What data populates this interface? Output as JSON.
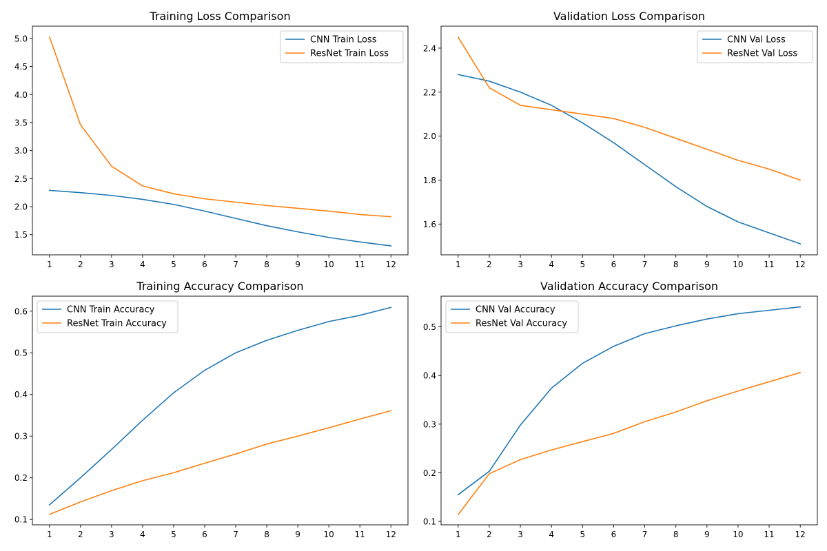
{
  "chart_data": [
    {
      "type": "line",
      "title": "Training Loss Comparison",
      "xlabel": "",
      "ylabel": "",
      "x": [
        1,
        2,
        3,
        4,
        5,
        6,
        7,
        8,
        9,
        10,
        11,
        12
      ],
      "xticks": [
        1,
        2,
        3,
        4,
        5,
        6,
        7,
        8,
        9,
        10,
        11,
        12
      ],
      "xlim": [
        0.45,
        12.55
      ],
      "ylim": [
        1.14,
        5.22
      ],
      "yticks": [
        1.5,
        2.0,
        2.5,
        3.0,
        3.5,
        4.0,
        4.5,
        5.0
      ],
      "ytick_labels": [
        "1.5",
        "2.0",
        "2.5",
        "3.0",
        "3.5",
        "4.0",
        "4.5",
        "5.0"
      ],
      "grid": false,
      "legend_position": "upper right",
      "series": [
        {
          "name": "CNN Train Loss",
          "color": "#1f77b4",
          "values": [
            2.29,
            2.25,
            2.2,
            2.13,
            2.04,
            1.92,
            1.79,
            1.66,
            1.55,
            1.45,
            1.37,
            1.3
          ]
        },
        {
          "name": "ResNet Train Loss",
          "color": "#ff7f0e",
          "values": [
            5.03,
            3.46,
            2.72,
            2.37,
            2.23,
            2.14,
            2.08,
            2.02,
            1.97,
            1.92,
            1.86,
            1.82
          ]
        }
      ]
    },
    {
      "type": "line",
      "title": "Validation Loss Comparison",
      "xlabel": "",
      "ylabel": "",
      "x": [
        1,
        2,
        3,
        4,
        5,
        6,
        7,
        8,
        9,
        10,
        11,
        12
      ],
      "xticks": [
        1,
        2,
        3,
        4,
        5,
        6,
        7,
        8,
        9,
        10,
        11,
        12
      ],
      "xlim": [
        0.45,
        12.55
      ],
      "ylim": [
        1.46,
        2.5
      ],
      "yticks": [
        1.6,
        1.8,
        2.0,
        2.2,
        2.4
      ],
      "ytick_labels": [
        "1.6",
        "1.8",
        "2.0",
        "2.2",
        "2.4"
      ],
      "grid": false,
      "legend_position": "upper right",
      "series": [
        {
          "name": "CNN Val Loss",
          "color": "#1f77b4",
          "values": [
            2.28,
            2.25,
            2.2,
            2.14,
            2.06,
            1.97,
            1.87,
            1.77,
            1.68,
            1.61,
            1.56,
            1.51
          ]
        },
        {
          "name": "ResNet Val Loss",
          "color": "#ff7f0e",
          "values": [
            2.45,
            2.22,
            2.14,
            2.12,
            2.1,
            2.08,
            2.04,
            1.99,
            1.94,
            1.89,
            1.85,
            1.8
          ]
        }
      ]
    },
    {
      "type": "line",
      "title": "Training Accuracy Comparison",
      "xlabel": "",
      "ylabel": "",
      "x": [
        1,
        2,
        3,
        4,
        5,
        6,
        7,
        8,
        9,
        10,
        11,
        12
      ],
      "xticks": [
        1,
        2,
        3,
        4,
        5,
        6,
        7,
        8,
        9,
        10,
        11,
        12
      ],
      "xlim": [
        0.45,
        12.55
      ],
      "ylim": [
        0.087,
        0.636
      ],
      "yticks": [
        0.1,
        0.2,
        0.3,
        0.4,
        0.5,
        0.6
      ],
      "ytick_labels": [
        "0.1",
        "0.2",
        "0.3",
        "0.4",
        "0.5",
        "0.6"
      ],
      "grid": false,
      "legend_position": "upper left",
      "series": [
        {
          "name": "CNN Train Accuracy",
          "color": "#1f77b4",
          "values": [
            0.135,
            0.2,
            0.268,
            0.338,
            0.404,
            0.458,
            0.5,
            0.53,
            0.554,
            0.575,
            0.59,
            0.609
          ]
        },
        {
          "name": "ResNet Train Accuracy",
          "color": "#ff7f0e",
          "values": [
            0.112,
            0.142,
            0.169,
            0.193,
            0.212,
            0.235,
            0.257,
            0.281,
            0.3,
            0.32,
            0.341,
            0.361
          ]
        }
      ]
    },
    {
      "type": "line",
      "title": "Validation Accuracy Comparison",
      "xlabel": "",
      "ylabel": "",
      "x": [
        1,
        2,
        3,
        4,
        5,
        6,
        7,
        8,
        9,
        10,
        11,
        12
      ],
      "xticks": [
        1,
        2,
        3,
        4,
        5,
        6,
        7,
        8,
        9,
        10,
        11,
        12
      ],
      "xlim": [
        0.45,
        12.55
      ],
      "ylim": [
        0.093,
        0.563
      ],
      "yticks": [
        0.1,
        0.2,
        0.3,
        0.4,
        0.5
      ],
      "ytick_labels": [
        "0.1",
        "0.2",
        "0.3",
        "0.4",
        "0.5"
      ],
      "grid": false,
      "legend_position": "upper left",
      "series": [
        {
          "name": "CNN Val Accuracy",
          "color": "#1f77b4",
          "values": [
            0.155,
            0.203,
            0.298,
            0.374,
            0.425,
            0.46,
            0.486,
            0.502,
            0.516,
            0.527,
            0.534,
            0.541
          ]
        },
        {
          "name": "ResNet Val Accuracy",
          "color": "#ff7f0e",
          "values": [
            0.114,
            0.198,
            0.227,
            0.247,
            0.264,
            0.281,
            0.305,
            0.325,
            0.348,
            0.368,
            0.387,
            0.406
          ]
        }
      ]
    }
  ]
}
